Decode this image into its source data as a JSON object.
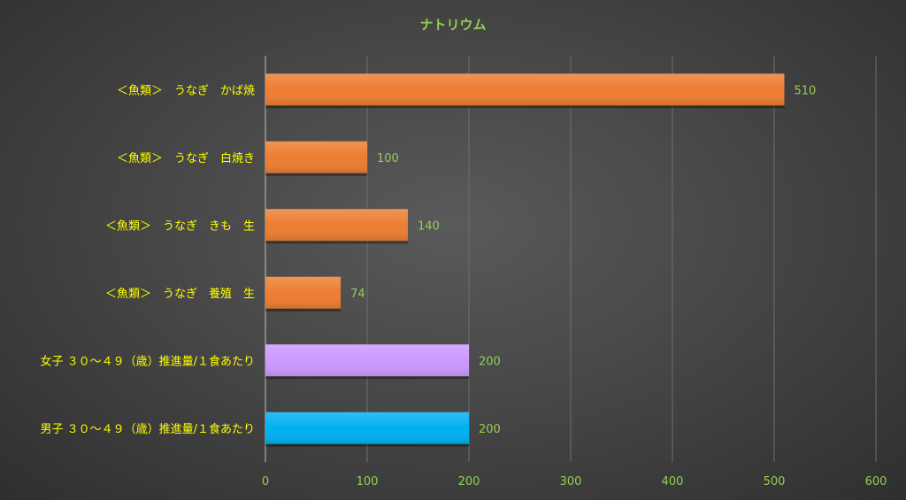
{
  "chart_data": {
    "type": "bar",
    "orientation": "horizontal",
    "title": "ナトリウム",
    "categories": [
      "＜魚類＞　うなぎ　かば焼",
      "＜魚類＞　うなぎ　白焼き",
      "＜魚類＞　うなぎ　きも　生",
      "＜魚類＞　うなぎ　養殖　生",
      "女子 ３０～４９（歳）推進量/１食あたり",
      "男子 ３０～４９（歳）推進量/１食あたり"
    ],
    "values": [
      510,
      100,
      140,
      74,
      200,
      200
    ],
    "value_labels": [
      "510",
      "100",
      "140",
      "74",
      "200",
      "200"
    ],
    "bar_colors": [
      "#ED7D31",
      "#ED7D31",
      "#ED7D31",
      "#ED7D31",
      "#CC99FF",
      "#00B0F0"
    ],
    "xlim": [
      0,
      600
    ],
    "xticks": [
      "0",
      "100",
      "200",
      "300",
      "400",
      "500",
      "600"
    ],
    "xlabel": "",
    "ylabel": "",
    "grid": true,
    "legend": "none",
    "colors": {
      "title": "#92D050",
      "category_text": "#FFFF00",
      "value_text": "#92D050",
      "tick_text": "#92D050",
      "gridline": "#6e6e6e",
      "axis_line": "#bfbfbf"
    }
  }
}
